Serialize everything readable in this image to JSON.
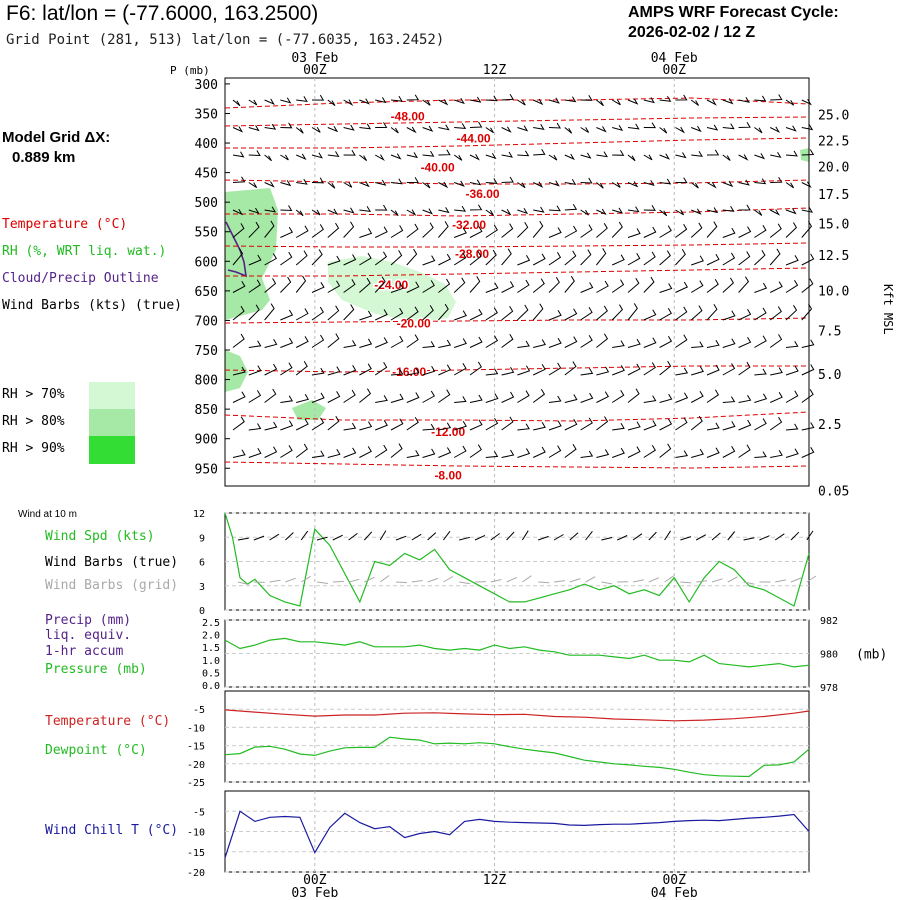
{
  "header": {
    "title": "F6:  lat/lon = (-77.6000, 163.2500)",
    "subtitle": "Grid Point (281, 513) lat/lon = (-77.6035, 163.2452)",
    "cycle_line1": "AMPS WRF Forecast Cycle:",
    "cycle_line2": "2026-02-02 / 12  Z"
  },
  "left_panel": {
    "grid_dx_label": "Model Grid ΔX:",
    "grid_dx_value": "0.889 km",
    "legend_temperature": "Temperature (°C)",
    "legend_rh": "RH (%, WRT liq. wat.)",
    "legend_cloud": "Cloud/Precip Outline",
    "legend_wind": "Wind Barbs (kts) (true)",
    "rh_levels": [
      "RH > 70%",
      "RH > 80%",
      "RH > 90%"
    ]
  },
  "colors": {
    "temperature": "#dd0000",
    "rh": "#22bb22",
    "cloud": "#552288",
    "wind_chill": "#1a1aa0",
    "rh70": "#d4f7d4",
    "rh80": "#a6e8a6",
    "rh90": "#33dd33",
    "grey_barb": "#aaaaaa"
  },
  "chart_data": [
    {
      "type": "contour-crosssection",
      "panel": "sounding",
      "y_axis_title": "P (mb)",
      "right_axis_title": "Kft MSL",
      "pressure_ticks": [
        "300",
        "350",
        "400",
        "450",
        "500",
        "550",
        "600",
        "650",
        "700",
        "750",
        "800",
        "850",
        "900",
        "950"
      ],
      "height_ticks": [
        "25.0",
        "22.5",
        "20.0",
        "17.5",
        "15.0",
        "12.5",
        "10.0",
        "7.5",
        "5.0",
        "2.5",
        "0.05"
      ],
      "height_tick_pressures": [
        352,
        396,
        440,
        486,
        536,
        589,
        649,
        717,
        791,
        875,
        988
      ],
      "x_hours_range": [
        0,
        39
      ],
      "x_major": [
        {
          "hour": 6,
          "label": "00Z",
          "date": "03 Feb"
        },
        {
          "hour": 18,
          "label": "12Z",
          "date": ""
        },
        {
          "hour": 30,
          "label": "00Z",
          "date": "04 Feb"
        }
      ],
      "temperature_labels": [
        {
          "text": "-48.00",
          "hour": 12.2,
          "p": 355
        },
        {
          "text": "-44.00",
          "hour": 16.6,
          "p": 392
        },
        {
          "text": "-40.00",
          "hour": 14.2,
          "p": 441
        },
        {
          "text": "-36.00",
          "hour": 17.2,
          "p": 486
        },
        {
          "text": "-32.00",
          "hour": 16.3,
          "p": 539
        },
        {
          "text": "-28.00",
          "hour": 16.5,
          "p": 588
        },
        {
          "text": "-24.00",
          "hour": 11.1,
          "p": 640
        },
        {
          "text": "-20.00",
          "hour": 12.6,
          "p": 705
        },
        {
          "text": "-16.00",
          "hour": 12.3,
          "p": 787
        },
        {
          "text": "-12.00",
          "hour": 14.9,
          "p": 889
        },
        {
          "text": "-8.00",
          "hour": 14.9,
          "p": 962
        }
      ]
    },
    {
      "type": "line",
      "panel": "wind",
      "corner_label": "Wind at 10 m",
      "labels": [
        "Wind Spd (kts)",
        "Wind Barbs (true)",
        "Wind Barbs (grid)"
      ],
      "ylim": [
        0,
        12
      ],
      "y_ticks": [
        "12",
        "9",
        "6",
        "3",
        "0"
      ],
      "series": [
        {
          "name": "Wind Spd (kts)",
          "color": "#22bb22",
          "x": [
            0,
            0.5,
            1,
            1.5,
            2,
            3,
            4,
            5,
            6,
            7,
            8,
            9,
            10,
            11,
            12,
            13,
            14,
            15,
            16,
            17,
            18,
            19,
            20,
            21,
            22,
            23,
            24,
            25,
            26,
            27,
            28,
            29,
            30,
            31,
            32,
            33,
            34,
            35,
            36,
            37,
            38,
            39
          ],
          "values": [
            12.5,
            9,
            4,
            3.2,
            3.8,
            1.8,
            1,
            0.5,
            10,
            8,
            4.5,
            1,
            6,
            5.5,
            7,
            6.2,
            7.5,
            5,
            4,
            3,
            2,
            1,
            1,
            1.5,
            2,
            2.5,
            3.2,
            2.5,
            3,
            2,
            2.5,
            1.8,
            4,
            1,
            4,
            6,
            5,
            3,
            2.5,
            1.5,
            0.5,
            7
          ]
        }
      ]
    },
    {
      "type": "line",
      "panel": "precip-pressure",
      "labels": [
        "Precip (mm)",
        "liq. equiv.",
        "1-hr accum",
        "Pressure (mb)"
      ],
      "left_ticks": [
        "2.5",
        "2.0",
        "1.5",
        "1.0",
        "0.5",
        "0.0"
      ],
      "right_ticks": [
        "982",
        "980",
        "978"
      ],
      "right_unit": "(mb)",
      "ylim_right": [
        978,
        982
      ],
      "series": [
        {
          "name": "Pressure (mb)",
          "color": "#22bb22",
          "x": [
            0,
            1,
            2,
            3,
            4,
            5,
            6,
            7,
            8,
            9,
            10,
            11,
            12,
            13,
            14,
            15,
            16,
            17,
            18,
            19,
            20,
            21,
            22,
            23,
            24,
            25,
            26,
            27,
            28,
            29,
            30,
            31,
            32,
            33,
            34,
            35,
            36,
            37,
            38,
            39
          ],
          "values": [
            980.8,
            980.3,
            980.5,
            980.8,
            980.9,
            980.7,
            980.7,
            980.6,
            980.5,
            980.7,
            980.4,
            980.4,
            980.4,
            980.5,
            980.3,
            980.2,
            980.3,
            980.2,
            980.5,
            980.3,
            980.4,
            980.2,
            980.1,
            979.9,
            979.9,
            979.9,
            979.8,
            979.7,
            979.9,
            979.6,
            979.6,
            979.5,
            979.9,
            979.4,
            979.3,
            979.2,
            979.3,
            979.4,
            979.2,
            979.3
          ]
        }
      ]
    },
    {
      "type": "line",
      "panel": "temperature-dewpoint",
      "labels": [
        "Temperature (°C)",
        "Dewpoint (°C)"
      ],
      "ylim": [
        -25,
        0
      ],
      "y_ticks": [
        "-5",
        "-10",
        "-15",
        "-20",
        "-25"
      ],
      "series": [
        {
          "name": "Temperature (°C)",
          "color": "#cc2222",
          "x": [
            0,
            2,
            4,
            6,
            8,
            10,
            12,
            14,
            16,
            18,
            20,
            22,
            24,
            26,
            28,
            30,
            32,
            34,
            36,
            38,
            39
          ],
          "values": [
            -5.2,
            -5.8,
            -6.4,
            -6.9,
            -6.6,
            -6.6,
            -6.1,
            -6.0,
            -6.3,
            -6.5,
            -6.4,
            -7.0,
            -7.2,
            -7.7,
            -7.9,
            -8.2,
            -8.0,
            -7.6,
            -7.0,
            -6.1,
            -5.5
          ]
        },
        {
          "name": "Dewpoint (°C)",
          "color": "#22bb22",
          "x": [
            0,
            1,
            2,
            3,
            4,
            5,
            6,
            7,
            8,
            9,
            10,
            11,
            12,
            13,
            14,
            15,
            16,
            17,
            18,
            19,
            20,
            21,
            22,
            23,
            24,
            25,
            26,
            27,
            28,
            29,
            30,
            31,
            32,
            33,
            34,
            35,
            36,
            37,
            38,
            39
          ],
          "values": [
            -17.5,
            -17.2,
            -15.4,
            -15.2,
            -16,
            -17.3,
            -17.7,
            -16.5,
            -15.6,
            -15.5,
            -15.5,
            -12.7,
            -13.2,
            -13.5,
            -14.5,
            -14.3,
            -14.5,
            -14.2,
            -14.5,
            -15.3,
            -16,
            -16.5,
            -17,
            -18,
            -19,
            -19.5,
            -20,
            -20.3,
            -20.7,
            -21,
            -21.5,
            -22.3,
            -23,
            -23.3,
            -23.4,
            -23.5,
            -20.4,
            -20.3,
            -19.5,
            -16
          ]
        }
      ]
    },
    {
      "type": "line",
      "panel": "wind-chill",
      "labels": [
        "Wind Chill T (°C)"
      ],
      "ylim": [
        -20,
        0
      ],
      "y_ticks": [
        "-5",
        "-10",
        "-15",
        "-20"
      ],
      "series": [
        {
          "name": "Wind Chill T (°C)",
          "color": "#1a1aa0",
          "x": [
            0,
            1,
            2,
            3,
            4,
            5,
            6,
            7,
            8,
            9,
            10,
            11,
            12,
            13,
            14,
            15,
            16,
            17,
            18,
            19,
            20,
            21,
            22,
            23,
            24,
            25,
            26,
            27,
            28,
            29,
            30,
            31,
            32,
            33,
            34,
            35,
            36,
            37,
            38,
            39
          ],
          "values": [
            -16.5,
            -5,
            -7.5,
            -6.5,
            -6.3,
            -6.5,
            -15.2,
            -9,
            -5.5,
            -7.8,
            -9.3,
            -8.8,
            -11.5,
            -10.5,
            -10,
            -10.8,
            -7.5,
            -7,
            -7.5,
            -7.7,
            -7.8,
            -7.9,
            -8,
            -8.4,
            -8.5,
            -8.3,
            -8.2,
            -8.2,
            -8,
            -7.8,
            -7.5,
            -7.3,
            -7.2,
            -7.3,
            -7,
            -6.7,
            -6.5,
            -6.2,
            -5.8,
            -10
          ]
        }
      ]
    }
  ]
}
